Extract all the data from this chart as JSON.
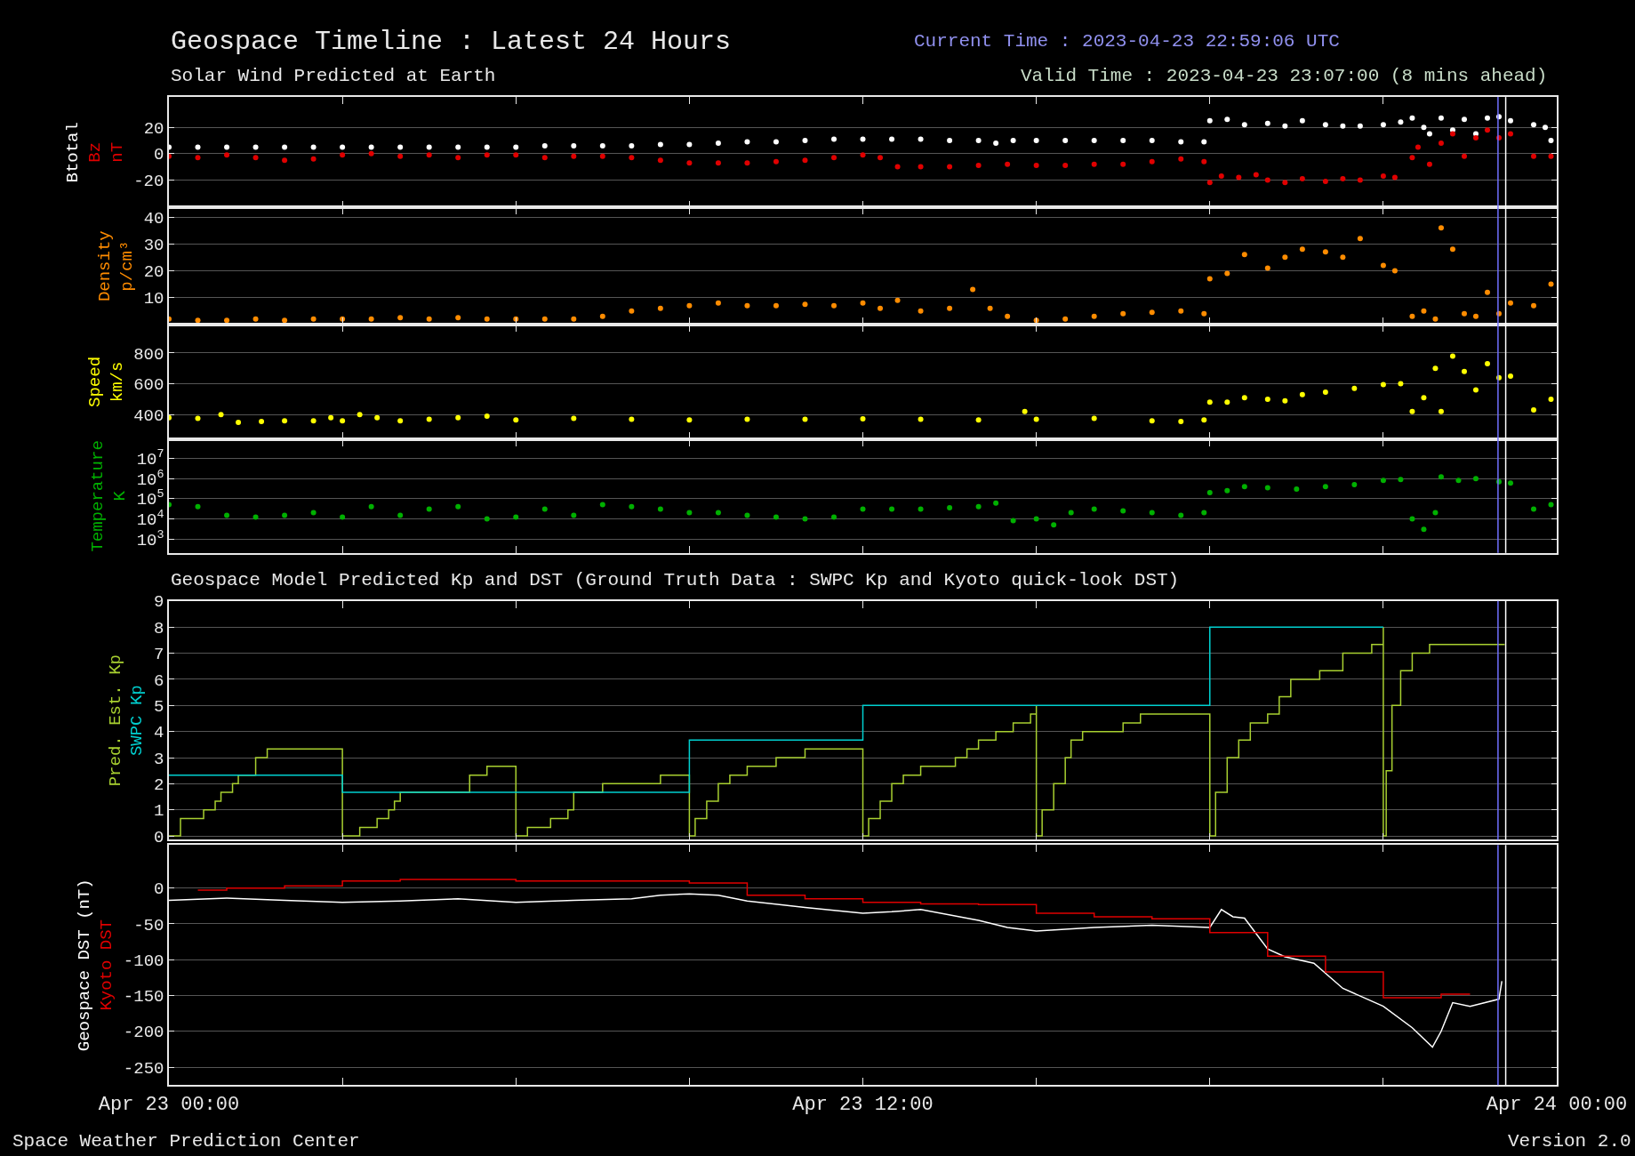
{
  "chart_data": [
    {
      "type": "scatter",
      "title": "Geospace Timeline : Latest 24 Hours",
      "subtitle": "Solar Wind Predicted at Earth",
      "ylabel": "nT",
      "annotations": [
        "Current Time : 2023-04-23 22:59:06 UTC",
        "Valid Time : 2023-04-23 23:07:00 (8 mins ahead)"
      ],
      "marker": "circle",
      "grid": "y",
      "tick_labels": "y",
      "xlim": [
        "2023-04-23T00:00",
        "2023-04-24T00:00"
      ],
      "xticks": [
        {
          "value": "2023-04-23T00:00",
          "label": null
        },
        {
          "value": "2023-04-23T03:00",
          "label": null
        },
        {
          "value": "2023-04-23T06:00",
          "label": null
        },
        {
          "value": "2023-04-23T09:00",
          "label": null
        },
        {
          "value": "2023-04-23T12:00",
          "label": null
        },
        {
          "value": "2023-04-23T15:00",
          "label": null
        },
        {
          "value": "2023-04-23T18:00",
          "label": null
        },
        {
          "value": "2023-04-23T21:00",
          "label": null
        },
        {
          "value": "2023-04-24T00:00",
          "label": null
        }
      ],
      "ylim": [
        -41,
        43
      ],
      "yticks": [
        -20,
        0,
        20
      ],
      "ref_lines": [
        {
          "axis": "x",
          "value": "2023-04-23T22:59",
          "color": "#7070ff"
        },
        {
          "axis": "x",
          "value": "2023-04-23T23:07",
          "color": "#ffffff"
        }
      ],
      "series": [
        {
          "name": "Btotal",
          "color": "#ffffff",
          "x": [
            "2023-04-23T00:00",
            "2023-04-23T00:30",
            "2023-04-23T01:00",
            "2023-04-23T01:30",
            "2023-04-23T02:00",
            "2023-04-23T02:30",
            "2023-04-23T03:00",
            "2023-04-23T03:30",
            "2023-04-23T04:00",
            "2023-04-23T04:30",
            "2023-04-23T05:00",
            "2023-04-23T05:30",
            "2023-04-23T06:00",
            "2023-04-23T06:30",
            "2023-04-23T07:00",
            "2023-04-23T07:30",
            "2023-04-23T08:00",
            "2023-04-23T08:30",
            "2023-04-23T09:00",
            "2023-04-23T09:30",
            "2023-04-23T10:00",
            "2023-04-23T10:30",
            "2023-04-23T11:00",
            "2023-04-23T11:30",
            "2023-04-23T12:00",
            "2023-04-23T12:30",
            "2023-04-23T13:00",
            "2023-04-23T13:30",
            "2023-04-23T14:00",
            "2023-04-23T14:18",
            "2023-04-23T14:36",
            "2023-04-23T15:00",
            "2023-04-23T15:30",
            "2023-04-23T16:00",
            "2023-04-23T16:30",
            "2023-04-23T17:00",
            "2023-04-23T17:30",
            "2023-04-23T17:54",
            "2023-04-23T18:00",
            "2023-04-23T18:18",
            "2023-04-23T18:36",
            "2023-04-23T19:00",
            "2023-04-23T19:18",
            "2023-04-23T19:36",
            "2023-04-23T20:00",
            "2023-04-23T20:18",
            "2023-04-23T20:36",
            "2023-04-23T21:00",
            "2023-04-23T21:18",
            "2023-04-23T21:30",
            "2023-04-23T21:42",
            "2023-04-23T21:48",
            "2023-04-23T22:00",
            "2023-04-23T22:12",
            "2023-04-23T22:24",
            "2023-04-23T22:36",
            "2023-04-23T22:48",
            "2023-04-23T23:00",
            "2023-04-23T23:12",
            "2023-04-23T23:36",
            "2023-04-23T23:48",
            "2023-04-23T23:54"
          ],
          "values": [
            5,
            5,
            5,
            5,
            5,
            5,
            5,
            5,
            5,
            5,
            5,
            5,
            5,
            6,
            6,
            6,
            6,
            7,
            7,
            8,
            9,
            9,
            10,
            11,
            11,
            11,
            11,
            10,
            10,
            8,
            10,
            10,
            10,
            10,
            10,
            10,
            9,
            9,
            25,
            26,
            22,
            23,
            21,
            25,
            22,
            21,
            21,
            22,
            24,
            27,
            20,
            15,
            27,
            18,
            26,
            15,
            27,
            28,
            25,
            22,
            20,
            10
          ]
        },
        {
          "name": "Bz",
          "color": "#e00000",
          "x": [
            "2023-04-23T00:00",
            "2023-04-23T00:30",
            "2023-04-23T01:00",
            "2023-04-23T01:30",
            "2023-04-23T02:00",
            "2023-04-23T02:30",
            "2023-04-23T03:00",
            "2023-04-23T03:30",
            "2023-04-23T04:00",
            "2023-04-23T04:30",
            "2023-04-23T05:00",
            "2023-04-23T05:30",
            "2023-04-23T06:00",
            "2023-04-23T06:30",
            "2023-04-23T07:00",
            "2023-04-23T07:30",
            "2023-04-23T08:00",
            "2023-04-23T08:30",
            "2023-04-23T09:00",
            "2023-04-23T09:30",
            "2023-04-23T10:00",
            "2023-04-23T10:30",
            "2023-04-23T11:00",
            "2023-04-23T11:30",
            "2023-04-23T12:00",
            "2023-04-23T12:18",
            "2023-04-23T12:36",
            "2023-04-23T13:00",
            "2023-04-23T13:30",
            "2023-04-23T14:00",
            "2023-04-23T14:30",
            "2023-04-23T15:00",
            "2023-04-23T15:30",
            "2023-04-23T16:00",
            "2023-04-23T16:30",
            "2023-04-23T17:00",
            "2023-04-23T17:30",
            "2023-04-23T17:54",
            "2023-04-23T18:00",
            "2023-04-23T18:12",
            "2023-04-23T18:30",
            "2023-04-23T18:48",
            "2023-04-23T19:00",
            "2023-04-23T19:18",
            "2023-04-23T19:36",
            "2023-04-23T20:00",
            "2023-04-23T20:18",
            "2023-04-23T20:36",
            "2023-04-23T21:00",
            "2023-04-23T21:12",
            "2023-04-23T21:30",
            "2023-04-23T21:36",
            "2023-04-23T21:48",
            "2023-04-23T22:00",
            "2023-04-23T22:12",
            "2023-04-23T22:24",
            "2023-04-23T22:36",
            "2023-04-23T22:48",
            "2023-04-23T23:00",
            "2023-04-23T23:12",
            "2023-04-23T23:36",
            "2023-04-23T23:54"
          ],
          "values": [
            -2,
            -3,
            -1,
            -3,
            -5,
            -4,
            -1,
            0,
            -2,
            -1,
            -3,
            -1,
            -1,
            -3,
            -2,
            -2,
            -3,
            -5,
            -7,
            -7,
            -7,
            -6,
            -5,
            -3,
            -1,
            -3,
            -10,
            -10,
            -10,
            -9,
            -8,
            -9,
            -9,
            -8,
            -8,
            -6,
            -4,
            -6,
            -22,
            -17,
            -18,
            -16,
            -20,
            -22,
            -19,
            -21,
            -19,
            -20,
            -17,
            -18,
            -3,
            5,
            -8,
            8,
            15,
            -2,
            12,
            18,
            12,
            15,
            -2,
            -2
          ]
        }
      ]
    },
    {
      "type": "scatter",
      "ylabel": "p/cm³",
      "marker": "circle",
      "grid": "y",
      "tick_labels": "y",
      "xlim": [
        "2023-04-23T00:00",
        "2023-04-24T00:00"
      ],
      "xticks": [
        {
          "value": "2023-04-23T00:00",
          "label": null
        },
        {
          "value": "2023-04-23T03:00",
          "label": null
        },
        {
          "value": "2023-04-23T06:00",
          "label": null
        },
        {
          "value": "2023-04-23T09:00",
          "label": null
        },
        {
          "value": "2023-04-23T12:00",
          "label": null
        },
        {
          "value": "2023-04-23T15:00",
          "label": null
        },
        {
          "value": "2023-04-23T18:00",
          "label": null
        },
        {
          "value": "2023-04-23T21:00",
          "label": null
        },
        {
          "value": "2023-04-24T00:00",
          "label": null
        }
      ],
      "ylim": [
        0,
        43.5
      ],
      "yticks": [
        10,
        20,
        30,
        40
      ],
      "ref_lines": [
        {
          "axis": "x",
          "value": "2023-04-23T22:59",
          "color": "#7070ff"
        },
        {
          "axis": "x",
          "value": "2023-04-23T23:07",
          "color": "#ffffff"
        }
      ],
      "series": [
        {
          "name": "Density",
          "color": "#ff8c00",
          "x": [
            "2023-04-23T00:00",
            "2023-04-23T00:30",
            "2023-04-23T01:00",
            "2023-04-23T01:30",
            "2023-04-23T02:00",
            "2023-04-23T02:30",
            "2023-04-23T03:00",
            "2023-04-23T03:30",
            "2023-04-23T04:00",
            "2023-04-23T04:30",
            "2023-04-23T05:00",
            "2023-04-23T05:30",
            "2023-04-23T06:00",
            "2023-04-23T06:30",
            "2023-04-23T07:00",
            "2023-04-23T07:30",
            "2023-04-23T08:00",
            "2023-04-23T08:30",
            "2023-04-23T09:00",
            "2023-04-23T09:30",
            "2023-04-23T10:00",
            "2023-04-23T10:30",
            "2023-04-23T11:00",
            "2023-04-23T11:30",
            "2023-04-23T12:00",
            "2023-04-23T12:18",
            "2023-04-23T12:36",
            "2023-04-23T13:00",
            "2023-04-23T13:30",
            "2023-04-23T13:54",
            "2023-04-23T14:12",
            "2023-04-23T14:30",
            "2023-04-23T15:00",
            "2023-04-23T15:30",
            "2023-04-23T16:00",
            "2023-04-23T16:30",
            "2023-04-23T17:00",
            "2023-04-23T17:30",
            "2023-04-23T17:54",
            "2023-04-23T18:00",
            "2023-04-23T18:18",
            "2023-04-23T18:36",
            "2023-04-23T19:00",
            "2023-04-23T19:18",
            "2023-04-23T19:36",
            "2023-04-23T20:00",
            "2023-04-23T20:18",
            "2023-04-23T20:36",
            "2023-04-23T21:00",
            "2023-04-23T21:12",
            "2023-04-23T21:30",
            "2023-04-23T21:42",
            "2023-04-23T21:54",
            "2023-04-23T22:00",
            "2023-04-23T22:12",
            "2023-04-23T22:24",
            "2023-04-23T22:36",
            "2023-04-23T22:48",
            "2023-04-23T23:00",
            "2023-04-23T23:12",
            "2023-04-23T23:36",
            "2023-04-23T23:54"
          ],
          "values": [
            2,
            1.5,
            1.5,
            2,
            1.5,
            2,
            2,
            2,
            2.5,
            2,
            2.5,
            2,
            2,
            2,
            2,
            3,
            5,
            6,
            7,
            8,
            7,
            7,
            7.5,
            7,
            8,
            6,
            9,
            5,
            6,
            13,
            6,
            3,
            1.5,
            2,
            3,
            4,
            4.5,
            5,
            4,
            17,
            19,
            26,
            21,
            25,
            28,
            27,
            25,
            32,
            22,
            20,
            3,
            5,
            2,
            36,
            28,
            4,
            3,
            12,
            4,
            8,
            7,
            15
          ]
        }
      ]
    },
    {
      "type": "scatter",
      "ylabel": "km/s",
      "marker": "circle",
      "grid": "y",
      "tick_labels": "y",
      "xlim": [
        "2023-04-23T00:00",
        "2023-04-24T00:00"
      ],
      "xticks": [
        {
          "value": "2023-04-23T00:00",
          "label": null
        },
        {
          "value": "2023-04-23T03:00",
          "label": null
        },
        {
          "value": "2023-04-23T06:00",
          "label": null
        },
        {
          "value": "2023-04-23T09:00",
          "label": null
        },
        {
          "value": "2023-04-23T12:00",
          "label": null
        },
        {
          "value": "2023-04-23T15:00",
          "label": null
        },
        {
          "value": "2023-04-23T18:00",
          "label": null
        },
        {
          "value": "2023-04-23T21:00",
          "label": null
        },
        {
          "value": "2023-04-24T00:00",
          "label": null
        }
      ],
      "ylim": [
        240,
        985
      ],
      "yticks": [
        400,
        600,
        800
      ],
      "ref_lines": [
        {
          "axis": "x",
          "value": "2023-04-23T22:59",
          "color": "#7070ff"
        },
        {
          "axis": "x",
          "value": "2023-04-23T23:07",
          "color": "#ffffff"
        }
      ],
      "series": [
        {
          "name": "Speed",
          "color": "#ffff00",
          "x": [
            "2023-04-23T00:00",
            "2023-04-23T00:30",
            "2023-04-23T00:54",
            "2023-04-23T01:12",
            "2023-04-23T01:36",
            "2023-04-23T02:00",
            "2023-04-23T02:30",
            "2023-04-23T02:48",
            "2023-04-23T03:00",
            "2023-04-23T03:18",
            "2023-04-23T03:36",
            "2023-04-23T04:00",
            "2023-04-23T04:30",
            "2023-04-23T05:00",
            "2023-04-23T05:30",
            "2023-04-23T06:00",
            "2023-04-23T07:00",
            "2023-04-23T08:00",
            "2023-04-23T09:00",
            "2023-04-23T10:00",
            "2023-04-23T11:00",
            "2023-04-23T12:00",
            "2023-04-23T13:00",
            "2023-04-23T14:00",
            "2023-04-23T14:48",
            "2023-04-23T15:00",
            "2023-04-23T16:00",
            "2023-04-23T17:00",
            "2023-04-23T17:30",
            "2023-04-23T17:54",
            "2023-04-23T18:00",
            "2023-04-23T18:18",
            "2023-04-23T18:36",
            "2023-04-23T19:00",
            "2023-04-23T19:18",
            "2023-04-23T19:36",
            "2023-04-23T20:00",
            "2023-04-23T20:30",
            "2023-04-23T21:00",
            "2023-04-23T21:18",
            "2023-04-23T21:30",
            "2023-04-23T21:42",
            "2023-04-23T21:54",
            "2023-04-23T22:00",
            "2023-04-23T22:12",
            "2023-04-23T22:24",
            "2023-04-23T22:36",
            "2023-04-23T22:48",
            "2023-04-23T23:00",
            "2023-04-23T23:12",
            "2023-04-23T23:36",
            "2023-04-23T23:54"
          ],
          "values": [
            380,
            375,
            400,
            350,
            355,
            360,
            360,
            380,
            360,
            400,
            380,
            360,
            370,
            380,
            390,
            365,
            375,
            370,
            365,
            370,
            370,
            372,
            370,
            365,
            420,
            370,
            375,
            360,
            355,
            365,
            480,
            480,
            510,
            500,
            490,
            530,
            545,
            570,
            595,
            600,
            420,
            510,
            700,
            420,
            780,
            680,
            560,
            730,
            640,
            650,
            430,
            500
          ]
        }
      ]
    },
    {
      "type": "scatter",
      "ylabel": "K",
      "marker": "circle",
      "grid": "y",
      "tick_labels": "y",
      "log": true,
      "xlim": [
        "2023-04-23T00:00",
        "2023-04-24T00:00"
      ],
      "xticks": [
        {
          "value": "2023-04-23T00:00",
          "label": null
        },
        {
          "value": "2023-04-23T03:00",
          "label": null
        },
        {
          "value": "2023-04-23T06:00",
          "label": null
        },
        {
          "value": "2023-04-23T09:00",
          "label": null
        },
        {
          "value": "2023-04-23T12:00",
          "label": null
        },
        {
          "value": "2023-04-23T15:00",
          "label": null
        },
        {
          "value": "2023-04-23T18:00",
          "label": null
        },
        {
          "value": "2023-04-23T21:00",
          "label": null
        },
        {
          "value": "2023-04-24T00:00",
          "label": null
        }
      ],
      "ylim": [
        200,
        90000000
      ],
      "yticks": [
        {
          "value": 1000,
          "label": "10$^{3}$"
        },
        {
          "value": 10000,
          "label": "10$^{4}$"
        },
        {
          "value": 100000,
          "label": "10$^{5}$"
        },
        {
          "value": 1000000,
          "label": "10$^{6}$"
        },
        {
          "value": 10000000,
          "label": "10$^{7}$"
        }
      ],
      "ref_lines": [
        {
          "axis": "x",
          "value": "2023-04-23T22:59",
          "color": "#7070ff"
        },
        {
          "axis": "x",
          "value": "2023-04-23T23:07",
          "color": "#ffffff"
        }
      ],
      "series": [
        {
          "name": "Temperature",
          "color": "#00b000",
          "x": [
            "2023-04-23T00:00",
            "2023-04-23T00:30",
            "2023-04-23T01:00",
            "2023-04-23T01:30",
            "2023-04-23T02:00",
            "2023-04-23T02:30",
            "2023-04-23T03:00",
            "2023-04-23T03:30",
            "2023-04-23T04:00",
            "2023-04-23T04:30",
            "2023-04-23T05:00",
            "2023-04-23T05:30",
            "2023-04-23T06:00",
            "2023-04-23T06:30",
            "2023-04-23T07:00",
            "2023-04-23T07:30",
            "2023-04-23T08:00",
            "2023-04-23T08:30",
            "2023-04-23T09:00",
            "2023-04-23T09:30",
            "2023-04-23T10:00",
            "2023-04-23T10:30",
            "2023-04-23T11:00",
            "2023-04-23T11:30",
            "2023-04-23T12:00",
            "2023-04-23T12:30",
            "2023-04-23T13:00",
            "2023-04-23T13:30",
            "2023-04-23T14:00",
            "2023-04-23T14:18",
            "2023-04-23T14:36",
            "2023-04-23T15:00",
            "2023-04-23T15:18",
            "2023-04-23T15:36",
            "2023-04-23T16:00",
            "2023-04-23T16:30",
            "2023-04-23T17:00",
            "2023-04-23T17:30",
            "2023-04-23T17:54",
            "2023-04-23T18:00",
            "2023-04-23T18:18",
            "2023-04-23T18:36",
            "2023-04-23T19:00",
            "2023-04-23T19:30",
            "2023-04-23T20:00",
            "2023-04-23T20:30",
            "2023-04-23T21:00",
            "2023-04-23T21:18",
            "2023-04-23T21:30",
            "2023-04-23T21:42",
            "2023-04-23T21:54",
            "2023-04-23T22:00",
            "2023-04-23T22:18",
            "2023-04-23T22:36",
            "2023-04-23T23:00",
            "2023-04-23T23:12",
            "2023-04-23T23:36",
            "2023-04-23T23:54"
          ],
          "values": [
            50000,
            40000,
            15000,
            12000,
            15000,
            20000,
            12000,
            40000,
            15000,
            30000,
            40000,
            10000,
            12000,
            30000,
            15000,
            50000,
            40000,
            30000,
            20000,
            20000,
            15000,
            12000,
            10000,
            12000,
            30000,
            30000,
            30000,
            35000,
            40000,
            60000,
            8000,
            10000,
            5000,
            20000,
            30000,
            25000,
            20000,
            15000,
            20000,
            200000,
            250000,
            400000,
            350000,
            300000,
            400000,
            500000,
            800000,
            900000,
            10000,
            3000,
            20000,
            1200000,
            800000,
            1000000,
            700000,
            600000,
            30000,
            50000
          ]
        }
      ]
    },
    {
      "type": "step",
      "title": "Geospace Model Predicted Kp and DST (Ground Truth Data : SWPC Kp and Kyoto quick-look DST)",
      "grid": "y",
      "tick_labels": "y",
      "xlim": [
        "2023-04-23T00:00",
        "2023-04-24T00:00"
      ],
      "xticks": [
        {
          "value": "2023-04-23T00:00",
          "label": null
        },
        {
          "value": "2023-04-23T03:00",
          "label": null
        },
        {
          "value": "2023-04-23T06:00",
          "label": null
        },
        {
          "value": "2023-04-23T09:00",
          "label": null
        },
        {
          "value": "2023-04-23T12:00",
          "label": null
        },
        {
          "value": "2023-04-23T15:00",
          "label": null
        },
        {
          "value": "2023-04-23T18:00",
          "label": null
        },
        {
          "value": "2023-04-23T21:00",
          "label": null
        },
        {
          "value": "2023-04-24T00:00",
          "label": null
        }
      ],
      "ylim": [
        -0.15,
        9
      ],
      "yticks": [
        0,
        1,
        2,
        3,
        4,
        5,
        6,
        7,
        8,
        9
      ],
      "ref_lines": [
        {
          "axis": "x",
          "value": "2023-04-23T22:59",
          "color": "#7070ff"
        },
        {
          "axis": "x",
          "value": "2023-04-23T23:07",
          "color": "#ffffff"
        }
      ],
      "series": [
        {
          "name": "Pred. Est. Kp",
          "color": "#a8d030",
          "x": [
            "2023-04-23T00:00",
            "2023-04-23T00:12",
            "2023-04-23T00:36",
            "2023-04-23T00:48",
            "2023-04-23T00:54",
            "2023-04-23T01:06",
            "2023-04-23T01:12",
            "2023-04-23T01:30",
            "2023-04-23T01:42",
            "2023-04-23T03:00",
            "2023-04-23T03:00",
            "2023-04-23T03:18",
            "2023-04-23T03:36",
            "2023-04-23T03:48",
            "2023-04-23T03:54",
            "2023-04-23T04:00",
            "2023-04-23T05:12",
            "2023-04-23T05:30",
            "2023-04-23T06:00",
            "2023-04-23T06:00",
            "2023-04-23T06:12",
            "2023-04-23T06:36",
            "2023-04-23T06:54",
            "2023-04-23T07:00",
            "2023-04-23T07:30",
            "2023-04-23T08:30",
            "2023-04-23T09:00",
            "2023-04-23T09:00",
            "2023-04-23T09:06",
            "2023-04-23T09:18",
            "2023-04-23T09:30",
            "2023-04-23T09:42",
            "2023-04-23T10:00",
            "2023-04-23T10:30",
            "2023-04-23T11:00",
            "2023-04-23T12:00",
            "2023-04-23T12:00",
            "2023-04-23T12:06",
            "2023-04-23T12:18",
            "2023-04-23T12:30",
            "2023-04-23T12:42",
            "2023-04-23T13:00",
            "2023-04-23T13:36",
            "2023-04-23T13:48",
            "2023-04-23T14:00",
            "2023-04-23T14:18",
            "2023-04-23T14:36",
            "2023-04-23T14:54",
            "2023-04-23T15:00",
            "2023-04-23T15:00",
            "2023-04-23T15:06",
            "2023-04-23T15:18",
            "2023-04-23T15:30",
            "2023-04-23T15:36",
            "2023-04-23T15:48",
            "2023-04-23T16:30",
            "2023-04-23T16:48",
            "2023-04-23T18:00",
            "2023-04-23T18:00",
            "2023-04-23T18:06",
            "2023-04-23T18:18",
            "2023-04-23T18:30",
            "2023-04-23T18:42",
            "2023-04-23T19:00",
            "2023-04-23T19:12",
            "2023-04-23T19:24",
            "2023-04-23T19:54",
            "2023-04-23T20:18",
            "2023-04-23T20:48",
            "2023-04-23T21:00",
            "2023-04-23T21:00",
            "2023-04-23T21:03",
            "2023-04-23T21:09",
            "2023-04-23T21:18",
            "2023-04-23T21:30",
            "2023-04-23T21:48",
            "2023-04-23T23:06"
          ],
          "values": [
            0,
            0.67,
            1,
            1.33,
            1.67,
            2,
            2.33,
            3,
            3.33,
            3.33,
            0,
            0.33,
            0.67,
            1,
            1.33,
            1.67,
            2.33,
            2.67,
            2.67,
            0,
            0.33,
            0.67,
            1,
            1.67,
            2,
            2.33,
            2.33,
            0,
            0.67,
            1.33,
            2,
            2.33,
            2.67,
            3,
            3.33,
            3.33,
            0,
            0.67,
            1.33,
            2,
            2.33,
            2.67,
            3,
            3.33,
            3.67,
            4,
            4.33,
            4.67,
            5,
            0,
            1,
            2,
            3,
            3.67,
            4,
            4.33,
            4.67,
            4.67,
            0,
            1.67,
            3,
            3.67,
            4.33,
            4.67,
            5.33,
            6,
            6.33,
            7,
            7.33,
            8,
            0,
            2.5,
            5,
            6.33,
            7,
            7.33,
            7.33
          ]
        },
        {
          "name": "SWPC Kp",
          "color": "#00d0d0",
          "x": [
            "2023-04-23T00:00",
            "2023-04-23T03:00",
            "2023-04-23T09:00",
            "2023-04-23T12:00",
            "2023-04-23T18:00",
            "2023-04-23T21:00"
          ],
          "values": [
            2.33,
            1.67,
            3.67,
            5,
            8,
            8
          ]
        }
      ]
    },
    {
      "type": "line",
      "grid": "y",
      "xlim": [
        "2023-04-23T00:00",
        "2023-04-24T00:00"
      ],
      "xticks": [
        {
          "value": "2023-04-23T00:00",
          "label": "Apr 23 00:00"
        },
        {
          "value": "2023-04-23T03:00",
          "label": null
        },
        {
          "value": "2023-04-23T06:00",
          "label": null
        },
        {
          "value": "2023-04-23T09:00",
          "label": null
        },
        {
          "value": "2023-04-23T12:00",
          "label": "Apr 23 12:00"
        },
        {
          "value": "2023-04-23T15:00",
          "label": null
        },
        {
          "value": "2023-04-23T18:00",
          "label": null
        },
        {
          "value": "2023-04-23T21:00",
          "label": null
        },
        {
          "value": "2023-04-24T00:00",
          "label": "Apr 24 00:00"
        }
      ],
      "ylim": [
        -275,
        60
      ],
      "yticks": [
        -250,
        -200,
        -150,
        -100,
        -50,
        0
      ],
      "annotations": [
        "Space Weather Prediction Center",
        "Version 2.0"
      ],
      "ref_lines": [
        {
          "axis": "x",
          "value": "2023-04-23T22:59",
          "color": "#7070ff"
        },
        {
          "axis": "x",
          "value": "2023-04-23T23:07",
          "color": "#ffffff"
        }
      ],
      "series": [
        {
          "name": "Geospace DST (nT)",
          "color": "#ffffff",
          "x": [
            "2023-04-23T00:00",
            "2023-04-23T01:00",
            "2023-04-23T02:00",
            "2023-04-23T03:00",
            "2023-04-23T04:00",
            "2023-04-23T05:00",
            "2023-04-23T06:00",
            "2023-04-23T07:00",
            "2023-04-23T08:00",
            "2023-04-23T08:30",
            "2023-04-23T09:00",
            "2023-04-23T09:30",
            "2023-04-23T10:00",
            "2023-04-23T11:00",
            "2023-04-23T12:00",
            "2023-04-23T12:30",
            "2023-04-23T13:00",
            "2023-04-23T14:00",
            "2023-04-23T14:30",
            "2023-04-23T15:00",
            "2023-04-23T16:00",
            "2023-04-23T17:00",
            "2023-04-23T18:00",
            "2023-04-23T18:12",
            "2023-04-23T18:24",
            "2023-04-23T18:36",
            "2023-04-23T19:00",
            "2023-04-23T19:18",
            "2023-04-23T19:48",
            "2023-04-23T20:18",
            "2023-04-23T21:00",
            "2023-04-23T21:30",
            "2023-04-23T21:51",
            "2023-04-23T22:00",
            "2023-04-23T22:12",
            "2023-04-23T22:30",
            "2023-04-23T23:00",
            "2023-04-23T23:03"
          ],
          "values": [
            -17,
            -14,
            -17,
            -20,
            -18,
            -15,
            -20,
            -17,
            -15,
            -10,
            -8,
            -10,
            -18,
            -27,
            -35,
            -33,
            -30,
            -45,
            -55,
            -60,
            -55,
            -52,
            -55,
            -30,
            -40,
            -42,
            -85,
            -96,
            -105,
            -140,
            -165,
            -195,
            -222,
            -200,
            -160,
            -165,
            -155,
            -130
          ]
        },
        {
          "name": "Kyoto DST",
          "type": "step",
          "color": "#e00000",
          "x": [
            "2023-04-23T00:30",
            "2023-04-23T01:00",
            "2023-04-23T02:00",
            "2023-04-23T03:00",
            "2023-04-23T04:00",
            "2023-04-23T06:00",
            "2023-04-23T09:00",
            "2023-04-23T10:00",
            "2023-04-23T11:00",
            "2023-04-23T12:00",
            "2023-04-23T13:00",
            "2023-04-23T14:00",
            "2023-04-23T15:00",
            "2023-04-23T16:00",
            "2023-04-23T17:00",
            "2023-04-23T18:00",
            "2023-04-23T19:00",
            "2023-04-23T20:00",
            "2023-04-23T21:00",
            "2023-04-23T22:00",
            "2023-04-23T22:30"
          ],
          "values": [
            -3,
            0,
            3,
            10,
            12,
            10,
            7,
            -10,
            -15,
            -20,
            -22,
            -23,
            -35,
            -40,
            -43,
            -62,
            -95,
            -117,
            -153,
            -148,
            -148
          ]
        }
      ]
    }
  ]
}
